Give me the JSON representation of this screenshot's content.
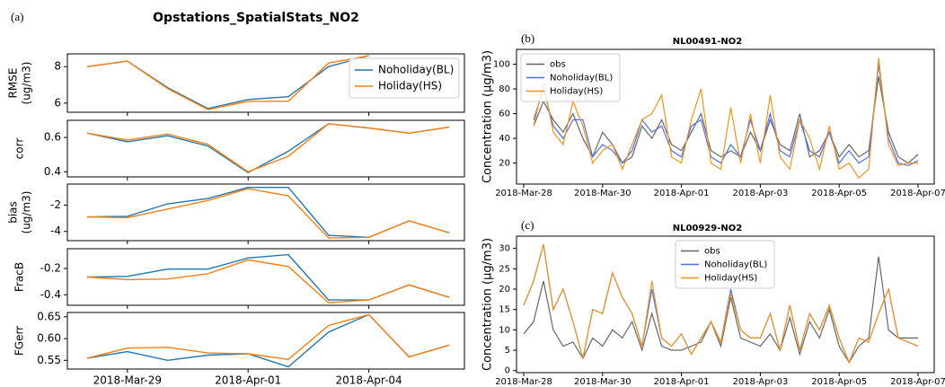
{
  "chart_data": [
    {
      "type": "line",
      "panel_label": "(a)",
      "title": "Opstations_SpatialStats_NO2",
      "ylabel": [
        "RMSE",
        "(ug/m3)"
      ],
      "ylim": [
        5.5,
        8.7
      ],
      "yticks": [
        6,
        8
      ],
      "legend": "upper right",
      "series": [
        {
          "name": "Noholiday(BL)",
          "color": "#1f77b4",
          "values": [
            8.0,
            8.3,
            6.85,
            5.7,
            6.2,
            6.35,
            8.0,
            8.6,
            null,
            null
          ]
        },
        {
          "name": "Holiday(HS)",
          "color": "#ff7f0e",
          "values": [
            8.0,
            8.3,
            6.8,
            5.65,
            6.1,
            6.1,
            8.2,
            8.6,
            null,
            null
          ]
        }
      ]
    },
    {
      "type": "line",
      "ylabel": [
        "corr"
      ],
      "ylim": [
        0.37,
        0.7
      ],
      "yticks": [
        0.4,
        0.6
      ],
      "series": [
        {
          "color": "#1f77b4",
          "values": [
            0.625,
            0.575,
            0.61,
            0.55,
            0.395,
            0.52,
            0.68,
            0.655,
            0.625,
            0.66
          ]
        },
        {
          "color": "#ff7f0e",
          "values": [
            0.625,
            0.585,
            0.62,
            0.56,
            0.4,
            0.49,
            0.68,
            0.655,
            0.625,
            0.66
          ]
        }
      ]
    },
    {
      "type": "line",
      "ylabel": [
        "bias",
        "(ug/m3)"
      ],
      "ylim": [
        -4.7,
        -0.4
      ],
      "yticks": [
        -4,
        -2
      ],
      "series": [
        {
          "color": "#1f77b4",
          "values": [
            -2.9,
            -2.85,
            -1.9,
            -1.5,
            -0.65,
            -0.65,
            -4.3,
            -4.45,
            -3.2,
            -4.1
          ]
        },
        {
          "color": "#ff7f0e",
          "values": [
            -2.9,
            -2.95,
            -2.3,
            -1.65,
            -0.75,
            -1.3,
            -4.5,
            -4.45,
            -3.2,
            -4.1
          ]
        }
      ]
    },
    {
      "type": "line",
      "ylabel": [
        "FracB"
      ],
      "ylim": [
        -0.48,
        -0.05
      ],
      "yticks": [
        -0.4,
        -0.2
      ],
      "series": [
        {
          "color": "#1f77b4",
          "values": [
            -0.265,
            -0.26,
            -0.205,
            -0.205,
            -0.12,
            -0.095,
            -0.44,
            -0.44,
            -0.325,
            -0.42
          ]
        },
        {
          "color": "#ff7f0e",
          "values": [
            -0.265,
            -0.285,
            -0.28,
            -0.24,
            -0.135,
            -0.185,
            -0.46,
            -0.44,
            -0.325,
            -0.42
          ]
        }
      ]
    },
    {
      "type": "line",
      "ylabel": [
        "FGerr"
      ],
      "ylim": [
        0.53,
        0.66
      ],
      "yticks": [
        0.55,
        {
          "value": 0.6,
          "label": "0.60"
        },
        0.65
      ],
      "categories": [
        null,
        "2018-Mar-29",
        null,
        null,
        "2018-Apr-01",
        null,
        null,
        "2018-Apr-04",
        null,
        null
      ],
      "series": [
        {
          "color": "#1f77b4",
          "values": [
            0.555,
            0.57,
            0.55,
            0.562,
            0.565,
            0.535,
            0.615,
            0.655,
            0.558,
            0.585
          ]
        },
        {
          "color": "#ff7f0e",
          "values": [
            0.555,
            0.578,
            0.58,
            0.567,
            0.565,
            0.552,
            0.63,
            0.655,
            0.558,
            0.585
          ]
        }
      ]
    },
    {
      "type": "line",
      "panel_label": "(b)",
      "title": "NL00491-NO2",
      "ylabel": [
        "Concentration (μg/m3)"
      ],
      "ylim": [
        3,
        112
      ],
      "yticks": [
        20,
        40,
        60,
        80,
        100
      ],
      "legend": "upper left",
      "categories": [
        "2018-Mar-28",
        null,
        null,
        null,
        null,
        null,
        null,
        null,
        "2018-Mar-30",
        null,
        null,
        null,
        null,
        null,
        null,
        null,
        "2018-Apr-01",
        null,
        null,
        null,
        null,
        null,
        null,
        null,
        "2018-Apr-03",
        null,
        null,
        null,
        null,
        null,
        null,
        null,
        "2018-Apr-05",
        null,
        null,
        null,
        null,
        null,
        null,
        null,
        "2018-Apr-07"
      ],
      "series": [
        {
          "name": "obs",
          "color": "#666666",
          "values": [
            null,
            50,
            70,
            55,
            45,
            60,
            40,
            25,
            45,
            35,
            20,
            25,
            50,
            40,
            55,
            35,
            30,
            45,
            60,
            30,
            25,
            30,
            25,
            45,
            30,
            55,
            35,
            30,
            60,
            25,
            30,
            45,
            25,
            35,
            25,
            30,
            90,
            45,
            25,
            20,
            27
          ]
        },
        {
          "name": "Noholiday(BL)",
          "color": "#4c6ef0",
          "values": [
            null,
            55,
            80,
            50,
            40,
            55,
            55,
            25,
            35,
            30,
            20,
            30,
            55,
            45,
            50,
            30,
            25,
            50,
            55,
            25,
            20,
            35,
            25,
            55,
            30,
            60,
            30,
            25,
            55,
            30,
            25,
            45,
            20,
            30,
            20,
            25,
            100,
            40,
            20,
            18,
            22
          ]
        },
        {
          "name": "Holiday(HS)",
          "color": "#f39418",
          "values": [
            null,
            50,
            85,
            45,
            35,
            70,
            50,
            20,
            30,
            35,
            15,
            35,
            55,
            60,
            75,
            25,
            20,
            55,
            80,
            20,
            15,
            65,
            20,
            60,
            20,
            75,
            25,
            15,
            55,
            40,
            15,
            50,
            15,
            20,
            8,
            15,
            105,
            35,
            18,
            20,
            20
          ]
        }
      ]
    },
    {
      "type": "line",
      "panel_label": "(c)",
      "title": "NL00929-NO2",
      "ylabel": [
        "Concentration (μg/m3)"
      ],
      "ylim": [
        -0.5,
        33
      ],
      "yticks": [
        0,
        5,
        10,
        15,
        20,
        25,
        30
      ],
      "legend": "upper center",
      "categories": [
        "2018-Mar-28",
        null,
        null,
        null,
        null,
        null,
        null,
        null,
        "2018-Mar-30",
        null,
        null,
        null,
        null,
        null,
        null,
        null,
        "2018-Apr-01",
        null,
        null,
        null,
        null,
        null,
        null,
        null,
        "2018-Apr-03",
        null,
        null,
        null,
        null,
        null,
        null,
        null,
        "2018-Apr-05",
        null,
        null,
        null,
        null,
        null,
        null,
        null,
        "2018-Apr-07"
      ],
      "series": [
        {
          "name": "obs",
          "color": "#666666",
          "values": [
            9,
            12,
            22,
            10,
            6,
            7,
            3,
            8,
            6,
            10,
            8,
            12,
            5,
            14,
            6,
            5,
            5,
            6,
            7,
            12,
            6,
            18,
            8,
            7,
            6,
            9,
            5,
            13,
            4,
            12,
            8,
            15,
            6,
            2,
            6,
            8,
            28,
            10,
            8,
            8,
            8
          ]
        },
        {
          "name": "Noholiday(BL)",
          "color": "#4c6ef0",
          "values": [
            16,
            22,
            31,
            15,
            20,
            12,
            3,
            15,
            14,
            24,
            18,
            14,
            6,
            20,
            8,
            6,
            9,
            4,
            8,
            12,
            7,
            20,
            10,
            8,
            8,
            14,
            5,
            16,
            5,
            14,
            10,
            16,
            8,
            2,
            8,
            7,
            14,
            20,
            8,
            7,
            6
          ]
        },
        {
          "name": "Holiday(HS)",
          "color": "#f39418",
          "values": [
            16,
            22,
            31,
            15,
            20,
            12,
            3,
            15,
            14,
            24,
            18,
            14,
            6,
            22,
            8,
            6,
            9,
            4,
            8,
            12,
            7,
            19,
            10,
            8,
            8,
            14,
            5,
            16,
            5,
            14,
            10,
            16,
            8,
            2,
            8,
            7,
            14,
            20,
            8,
            7,
            6
          ]
        }
      ]
    }
  ]
}
